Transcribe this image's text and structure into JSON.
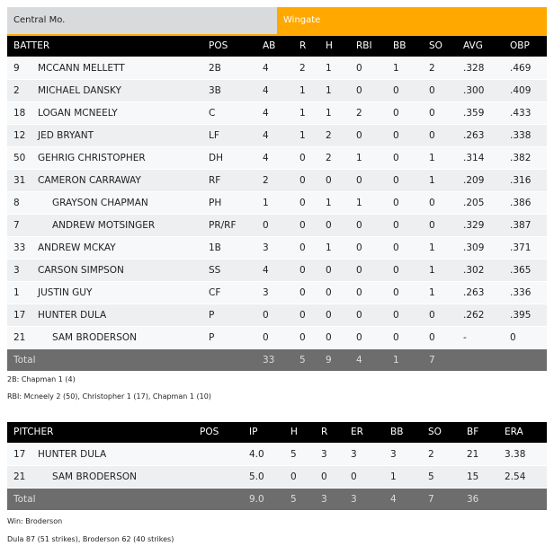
{
  "tabs": [
    "Central Mo.",
    "Wingate"
  ],
  "colors": {
    "accent": "#ffa800",
    "header": "#000000",
    "total": "#6d6d6d"
  },
  "batting": {
    "headers": [
      "BATTER",
      "POS",
      "AB",
      "R",
      "H",
      "RBI",
      "BB",
      "SO",
      "AVG",
      "OBP"
    ],
    "rows": [
      [
        "9",
        "MCCANN MELLETT",
        "2B",
        "4",
        "2",
        "1",
        "0",
        "1",
        "2",
        ".328",
        ".469",
        false
      ],
      [
        "2",
        "MICHAEL DANSKY",
        "3B",
        "4",
        "1",
        "1",
        "0",
        "0",
        "0",
        ".300",
        ".409",
        false
      ],
      [
        "18",
        "LOGAN MCNEELY",
        "C",
        "4",
        "1",
        "1",
        "2",
        "0",
        "0",
        ".359",
        ".433",
        false
      ],
      [
        "12",
        "JED BRYANT",
        "LF",
        "4",
        "1",
        "2",
        "0",
        "0",
        "0",
        ".263",
        ".338",
        false
      ],
      [
        "50",
        "GEHRIG CHRISTOPHER",
        "DH",
        "4",
        "0",
        "2",
        "1",
        "0",
        "1",
        ".314",
        ".382",
        false
      ],
      [
        "31",
        "CAMERON CARRAWAY",
        "RF",
        "2",
        "0",
        "0",
        "0",
        "0",
        "1",
        ".209",
        ".316",
        false
      ],
      [
        "8",
        "GRAYSON CHAPMAN",
        "PH",
        "1",
        "0",
        "1",
        "1",
        "0",
        "0",
        ".205",
        ".386",
        true
      ],
      [
        "7",
        "ANDREW MOTSINGER",
        "PR/RF",
        "0",
        "0",
        "0",
        "0",
        "0",
        "0",
        ".329",
        ".387",
        true
      ],
      [
        "33",
        "ANDREW MCKAY",
        "1B",
        "3",
        "0",
        "1",
        "0",
        "0",
        "1",
        ".309",
        ".371",
        false
      ],
      [
        "3",
        "CARSON SIMPSON",
        "SS",
        "4",
        "0",
        "0",
        "0",
        "0",
        "1",
        ".302",
        ".365",
        false
      ],
      [
        "1",
        "JUSTIN GUY",
        "CF",
        "3",
        "0",
        "0",
        "0",
        "0",
        "1",
        ".263",
        ".336",
        false
      ],
      [
        "17",
        "HUNTER DULA",
        "P",
        "0",
        "0",
        "0",
        "0",
        "0",
        "0",
        ".262",
        ".395",
        false
      ],
      [
        "21",
        "SAM BRODERSON",
        "P",
        "0",
        "0",
        "0",
        "0",
        "0",
        "0",
        "-",
        "0",
        true
      ]
    ],
    "total": [
      "Total",
      "33",
      "5",
      "9",
      "4",
      "1",
      "7"
    ],
    "notes": [
      "2B: Chapman 1 (4)",
      "RBI: Mcneely 2 (50), Christopher 1 (17), Chapman 1 (10)"
    ]
  },
  "pitching": {
    "headers": [
      "PITCHER",
      "POS",
      "IP",
      "H",
      "R",
      "ER",
      "BB",
      "SO",
      "BF",
      "ERA"
    ],
    "rows": [
      [
        "17",
        "HUNTER DULA",
        "",
        "4.0",
        "5",
        "3",
        "3",
        "3",
        "2",
        "21",
        "3.38",
        false
      ],
      [
        "21",
        "SAM BRODERSON",
        "",
        "5.0",
        "0",
        "0",
        "0",
        "1",
        "5",
        "15",
        "2.54",
        true
      ]
    ],
    "total": [
      "Total",
      "9.0",
      "5",
      "3",
      "3",
      "4",
      "7",
      "36"
    ],
    "notes": [
      "Win: Broderson",
      "Dula 87 (51 strikes), Broderson 62 (40 strikes)"
    ]
  }
}
